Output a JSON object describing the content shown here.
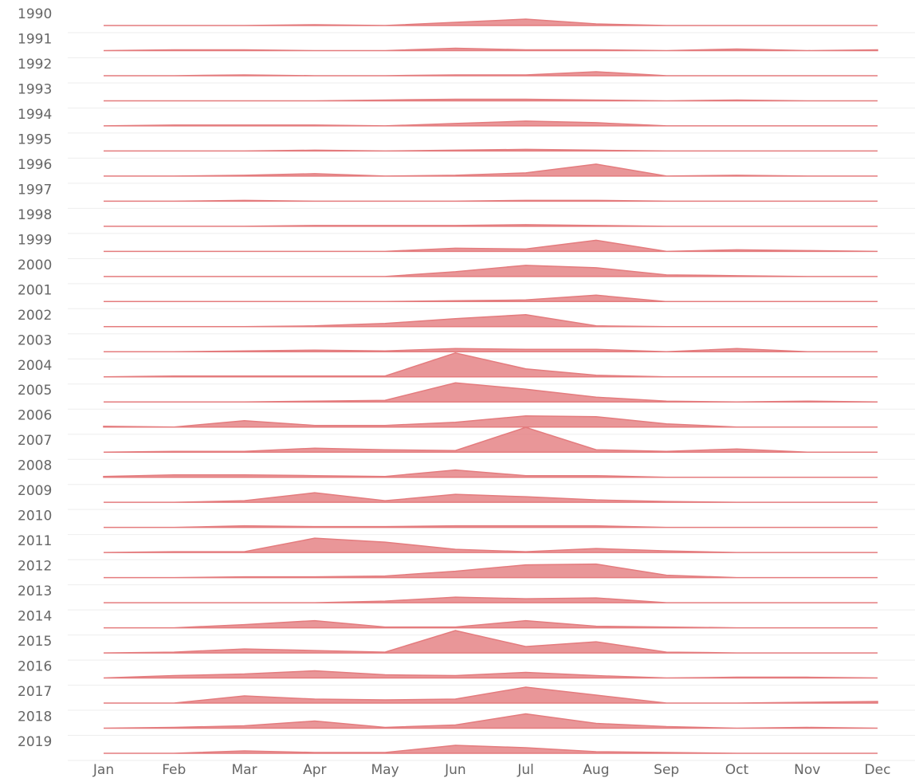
{
  "chart_data": {
    "type": "ridgeline",
    "color": "#e47c7e",
    "categories": [
      "Jan",
      "Feb",
      "Mar",
      "Apr",
      "May",
      "Jun",
      "Jul",
      "Aug",
      "Sep",
      "Oct",
      "Nov",
      "Dec"
    ],
    "series": [
      {
        "name": "1990",
        "values": [
          0,
          0,
          0,
          1,
          0,
          4,
          8,
          2,
          0,
          0,
          0,
          0
        ]
      },
      {
        "name": "1991",
        "values": [
          0,
          1,
          1,
          0,
          0,
          3,
          1,
          1,
          0,
          2,
          0,
          1
        ]
      },
      {
        "name": "1992",
        "values": [
          0,
          0,
          1,
          0,
          0,
          1,
          1,
          5,
          0,
          0,
          0,
          0
        ]
      },
      {
        "name": "1993",
        "values": [
          0,
          0,
          0,
          0,
          1,
          2,
          2,
          1,
          0,
          1,
          0,
          0
        ]
      },
      {
        "name": "1994",
        "values": [
          0,
          1,
          1,
          1,
          0,
          3,
          6,
          4,
          0,
          0,
          0,
          0
        ]
      },
      {
        "name": "1995",
        "values": [
          0,
          0,
          0,
          1,
          0,
          1,
          2,
          1,
          0,
          0,
          0,
          0
        ]
      },
      {
        "name": "1996",
        "values": [
          0,
          0,
          1,
          3,
          0,
          1,
          4,
          15,
          0,
          1,
          0,
          0
        ]
      },
      {
        "name": "1997",
        "values": [
          0,
          0,
          1,
          0,
          0,
          0,
          1,
          1,
          0,
          0,
          0,
          0
        ]
      },
      {
        "name": "1998",
        "values": [
          0,
          0,
          0,
          1,
          1,
          1,
          2,
          1,
          0,
          0,
          0,
          0
        ]
      },
      {
        "name": "1999",
        "values": [
          0,
          0,
          0,
          0,
          0,
          4,
          3,
          14,
          0,
          2,
          1,
          0
        ]
      },
      {
        "name": "2000",
        "values": [
          0,
          0,
          0,
          0,
          0,
          6,
          14,
          11,
          2,
          1,
          0,
          0
        ]
      },
      {
        "name": "2001",
        "values": [
          0,
          0,
          0,
          0,
          0,
          1,
          2,
          8,
          0,
          0,
          0,
          0
        ]
      },
      {
        "name": "2002",
        "values": [
          0,
          0,
          0,
          1,
          4,
          10,
          15,
          1,
          0,
          0,
          0,
          0
        ]
      },
      {
        "name": "2003",
        "values": [
          0,
          0,
          1,
          2,
          1,
          4,
          3,
          3,
          0,
          4,
          0,
          0
        ]
      },
      {
        "name": "2004",
        "values": [
          0,
          1,
          1,
          1,
          1,
          30,
          10,
          2,
          0,
          0,
          0,
          0
        ]
      },
      {
        "name": "2005",
        "values": [
          0,
          0,
          0,
          1,
          2,
          24,
          16,
          6,
          1,
          0,
          1,
          0
        ]
      },
      {
        "name": "2006",
        "values": [
          1,
          0,
          8,
          2,
          2,
          6,
          14,
          13,
          4,
          0,
          0,
          0
        ]
      },
      {
        "name": "2007",
        "values": [
          0,
          1,
          1,
          5,
          3,
          2,
          31,
          3,
          1,
          4,
          0,
          0
        ]
      },
      {
        "name": "2008",
        "values": [
          1,
          3,
          3,
          2,
          1,
          9,
          2,
          2,
          0,
          0,
          0,
          0
        ]
      },
      {
        "name": "2009",
        "values": [
          0,
          0,
          2,
          12,
          2,
          10,
          7,
          3,
          1,
          0,
          0,
          0
        ]
      },
      {
        "name": "2010",
        "values": [
          0,
          0,
          2,
          1,
          1,
          2,
          2,
          2,
          0,
          0,
          0,
          0
        ]
      },
      {
        "name": "2011",
        "values": [
          0,
          1,
          1,
          18,
          13,
          4,
          1,
          5,
          2,
          0,
          0,
          0
        ]
      },
      {
        "name": "2012",
        "values": [
          0,
          0,
          1,
          1,
          2,
          8,
          16,
          17,
          3,
          0,
          0,
          0
        ]
      },
      {
        "name": "2013",
        "values": [
          0,
          0,
          0,
          0,
          2,
          7,
          5,
          6,
          0,
          0,
          0,
          0
        ]
      },
      {
        "name": "2014",
        "values": [
          0,
          0,
          4,
          9,
          1,
          1,
          9,
          2,
          1,
          0,
          0,
          0
        ]
      },
      {
        "name": "2015",
        "values": [
          0,
          1,
          5,
          3,
          1,
          28,
          8,
          14,
          1,
          0,
          0,
          0
        ]
      },
      {
        "name": "2016",
        "values": [
          0,
          3,
          5,
          9,
          4,
          3,
          7,
          3,
          0,
          1,
          1,
          0
        ]
      },
      {
        "name": "2017",
        "values": [
          0,
          0,
          9,
          5,
          4,
          5,
          20,
          10,
          0,
          0,
          1,
          2
        ]
      },
      {
        "name": "2018",
        "values": [
          0,
          1,
          3,
          9,
          1,
          4,
          18,
          6,
          2,
          0,
          1,
          0
        ]
      },
      {
        "name": "2019",
        "values": [
          0,
          0,
          3,
          1,
          1,
          10,
          7,
          2,
          1,
          0,
          0,
          0
        ]
      }
    ]
  }
}
